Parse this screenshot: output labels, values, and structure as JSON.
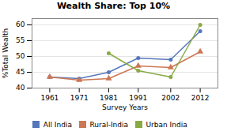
{
  "chart_data": {
    "type": "line",
    "title": "Wealth Share: Top 10%",
    "xlabel": "Survey Years",
    "ylabel": "%Total Wealth",
    "x": [
      1961,
      1971,
      1981,
      1991,
      2002,
      2012
    ],
    "series": [
      {
        "name": "All India",
        "color": "#5577bb",
        "marker": "circle",
        "values": [
          43.5,
          43.0,
          45.0,
          49.5,
          49.0,
          58.0
        ]
      },
      {
        "name": "Rural-India",
        "color": "#cc7755",
        "marker": "triangle",
        "values": [
          43.5,
          42.5,
          43.0,
          47.0,
          46.5,
          51.5
        ]
      },
      {
        "name": "Urban India",
        "color": "#88aa44",
        "marker": "circle",
        "values": [
          null,
          null,
          51.0,
          45.5,
          43.5,
          60.0
        ]
      }
    ],
    "xlim": [
      1955,
      2018
    ],
    "xticks": [
      1961,
      1971,
      1981,
      1991,
      2002,
      2012
    ],
    "ylim": [
      40,
      62
    ],
    "yticks": [
      40,
      45,
      50,
      55,
      60
    ],
    "grid": "y",
    "legend": "bottom"
  }
}
